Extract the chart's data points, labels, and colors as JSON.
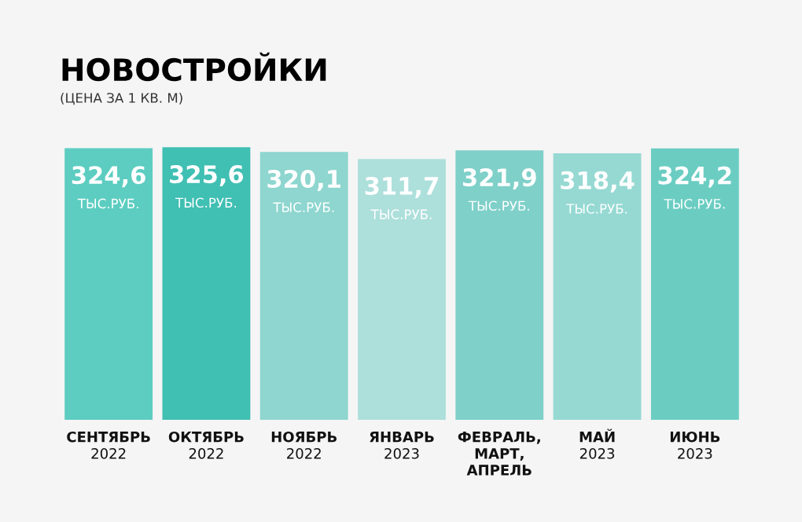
{
  "chart_data": {
    "type": "bar",
    "title": "НОВОСТРОЙКИ",
    "subtitle": "(ЦЕНА ЗА 1 КВ. М)",
    "categories": [
      "СЕНТЯБРЬ\n2022",
      "ОКТЯБРЬ\n2022",
      "НОЯБРЬ\n2022",
      "ЯНВАРЬ\n2023",
      "ФЕВРАЛЬ,\nМАРТ,\nАПРЕЛЬ",
      "МАЙ\n2023",
      "ИЮНЬ\n2023"
    ],
    "values": [
      324.6,
      325.6,
      320.1,
      311.7,
      321.9,
      318.4,
      324.2
    ],
    "value_labels": [
      "324,6\nТЫС.РУБ.",
      "325,6\nТЫС.РУБ.",
      "320,1\nТЫС.РУБ.",
      "311,7\nТЫС.РУБ.",
      "321,9\nТЫС.РУБ.",
      "318,4\nТЫС.РУБ.",
      "324,2\nТЫС.РУБ."
    ],
    "colors": [
      "#5ccdc0",
      "#40bfb3",
      "#8ed6cf",
      "#addfdb",
      "#7fd0c9",
      "#96d9d3",
      "#6bcdc2"
    ],
    "tick_labels": "x"
  }
}
